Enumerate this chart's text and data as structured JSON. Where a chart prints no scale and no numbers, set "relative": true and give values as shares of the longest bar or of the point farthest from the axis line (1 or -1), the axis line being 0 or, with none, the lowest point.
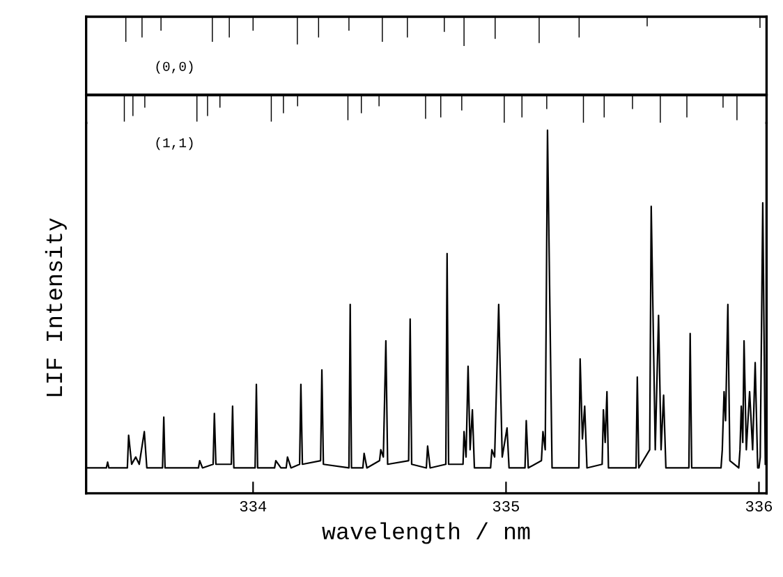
{
  "chart_data": [
    {
      "type": "bar",
      "relative": true,
      "tick_labels": false,
      "xlim": [
        333.34,
        336.03
      ],
      "color": "#000000",
      "annotations": [
        "(0,0)"
      ],
      "x": [
        333.497,
        333.561,
        333.636,
        333.839,
        333.906,
        334.0,
        334.175,
        334.259,
        334.379,
        334.511,
        334.61,
        334.756,
        334.834,
        334.957,
        335.131,
        335.289,
        335.558,
        336.004
      ],
      "values": [
        -0.86,
        -0.71,
        -0.48,
        -0.86,
        -0.71,
        -0.48,
        -0.95,
        -0.71,
        -0.48,
        -0.86,
        -0.71,
        -0.52,
        -1,
        -0.76,
        -0.9,
        -0.71,
        -0.33,
        -0.38
      ]
    },
    {
      "type": "bar",
      "relative": true,
      "tick_labels": false,
      "xlim": [
        333.34,
        336.03
      ],
      "color": "#000000",
      "annotations": [
        "(1,1)"
      ],
      "x": [
        333.491,
        333.525,
        333.572,
        333.778,
        333.82,
        333.869,
        334.072,
        334.12,
        334.176,
        334.375,
        334.428,
        334.498,
        334.682,
        334.742,
        334.825,
        334.993,
        335.063,
        335.161,
        335.306,
        335.388,
        335.5,
        335.61,
        335.715,
        335.858,
        335.913
      ],
      "values": [
        -0.95,
        -0.75,
        -0.45,
        -0.95,
        -0.75,
        -0.45,
        -0.95,
        -0.65,
        -0.4,
        -0.9,
        -0.65,
        -0.4,
        -0.85,
        -0.8,
        -0.55,
        -1,
        -0.8,
        -0.5,
        -1,
        -0.8,
        -0.5,
        -1,
        -0.8,
        -0.45,
        -0.9
      ]
    },
    {
      "type": "line",
      "relative": true,
      "tick_labels": "x",
      "xlabel": "wavelength / nm",
      "ylabel": "LIF Intensity",
      "xlim": [
        333.34,
        336.03
      ],
      "xticks": [
        334,
        335,
        336
      ],
      "color": "#000000",
      "x": [
        333.34,
        333.42,
        333.425,
        333.43,
        333.503,
        333.508,
        333.52,
        333.536,
        333.55,
        333.57,
        333.58,
        333.642,
        333.647,
        333.652,
        333.784,
        333.789,
        333.8,
        333.842,
        333.847,
        333.853,
        333.914,
        333.919,
        333.924,
        334.008,
        334.013,
        334.018,
        334.085,
        334.09,
        334.11,
        334.131,
        334.136,
        334.15,
        334.184,
        334.189,
        334.195,
        334.267,
        334.272,
        334.278,
        334.379,
        334.384,
        334.389,
        334.434,
        334.439,
        334.45,
        334.5,
        334.505,
        334.515,
        334.525,
        334.532,
        334.615,
        334.621,
        334.627,
        334.685,
        334.69,
        334.7,
        334.762,
        334.767,
        334.773,
        334.83,
        334.834,
        334.842,
        334.85,
        334.858,
        334.867,
        334.875,
        334.939,
        334.944,
        334.955,
        334.971,
        334.985,
        335.004,
        335.012,
        335.075,
        335.08,
        335.088,
        335.14,
        335.146,
        335.155,
        335.164,
        335.174,
        335.182,
        335.288,
        335.293,
        335.302,
        335.311,
        335.32,
        335.38,
        335.385,
        335.392,
        335.399,
        335.405,
        335.514,
        335.519,
        335.525,
        335.568,
        335.574,
        335.59,
        335.603,
        335.613,
        335.623,
        335.632,
        335.723,
        335.728,
        335.734,
        335.85,
        335.855,
        335.862,
        335.868,
        335.877,
        335.885,
        335.92,
        335.925,
        335.93,
        335.936,
        335.941,
        335.95,
        335.963,
        335.975,
        335.985,
        335.995,
        336.0,
        336.005,
        336.015,
        336.025
      ],
      "values": [
        0.07,
        0.07,
        0.086,
        0.07,
        0.07,
        0.16,
        0.08,
        0.1,
        0.08,
        0.17,
        0.07,
        0.07,
        0.21,
        0.07,
        0.07,
        0.09,
        0.07,
        0.08,
        0.22,
        0.08,
        0.08,
        0.24,
        0.07,
        0.07,
        0.3,
        0.07,
        0.07,
        0.09,
        0.07,
        0.07,
        0.1,
        0.07,
        0.08,
        0.3,
        0.08,
        0.09,
        0.34,
        0.08,
        0.07,
        0.52,
        0.07,
        0.07,
        0.11,
        0.07,
        0.09,
        0.12,
        0.1,
        0.42,
        0.08,
        0.09,
        0.48,
        0.08,
        0.07,
        0.13,
        0.07,
        0.08,
        0.66,
        0.08,
        0.08,
        0.17,
        0.1,
        0.35,
        0.12,
        0.23,
        0.07,
        0.07,
        0.12,
        0.1,
        0.52,
        0.1,
        0.18,
        0.07,
        0.07,
        0.2,
        0.07,
        0.09,
        0.17,
        0.12,
        1.0,
        0.48,
        0.07,
        0.07,
        0.37,
        0.15,
        0.24,
        0.07,
        0.08,
        0.23,
        0.14,
        0.28,
        0.07,
        0.07,
        0.32,
        0.07,
        0.12,
        0.79,
        0.12,
        0.49,
        0.12,
        0.27,
        0.07,
        0.07,
        0.44,
        0.07,
        0.07,
        0.12,
        0.28,
        0.2,
        0.52,
        0.09,
        0.07,
        0.12,
        0.24,
        0.14,
        0.42,
        0.12,
        0.28,
        0.12,
        0.36,
        0.07,
        0.07,
        0.1,
        0.8,
        0.08
      ]
    }
  ]
}
